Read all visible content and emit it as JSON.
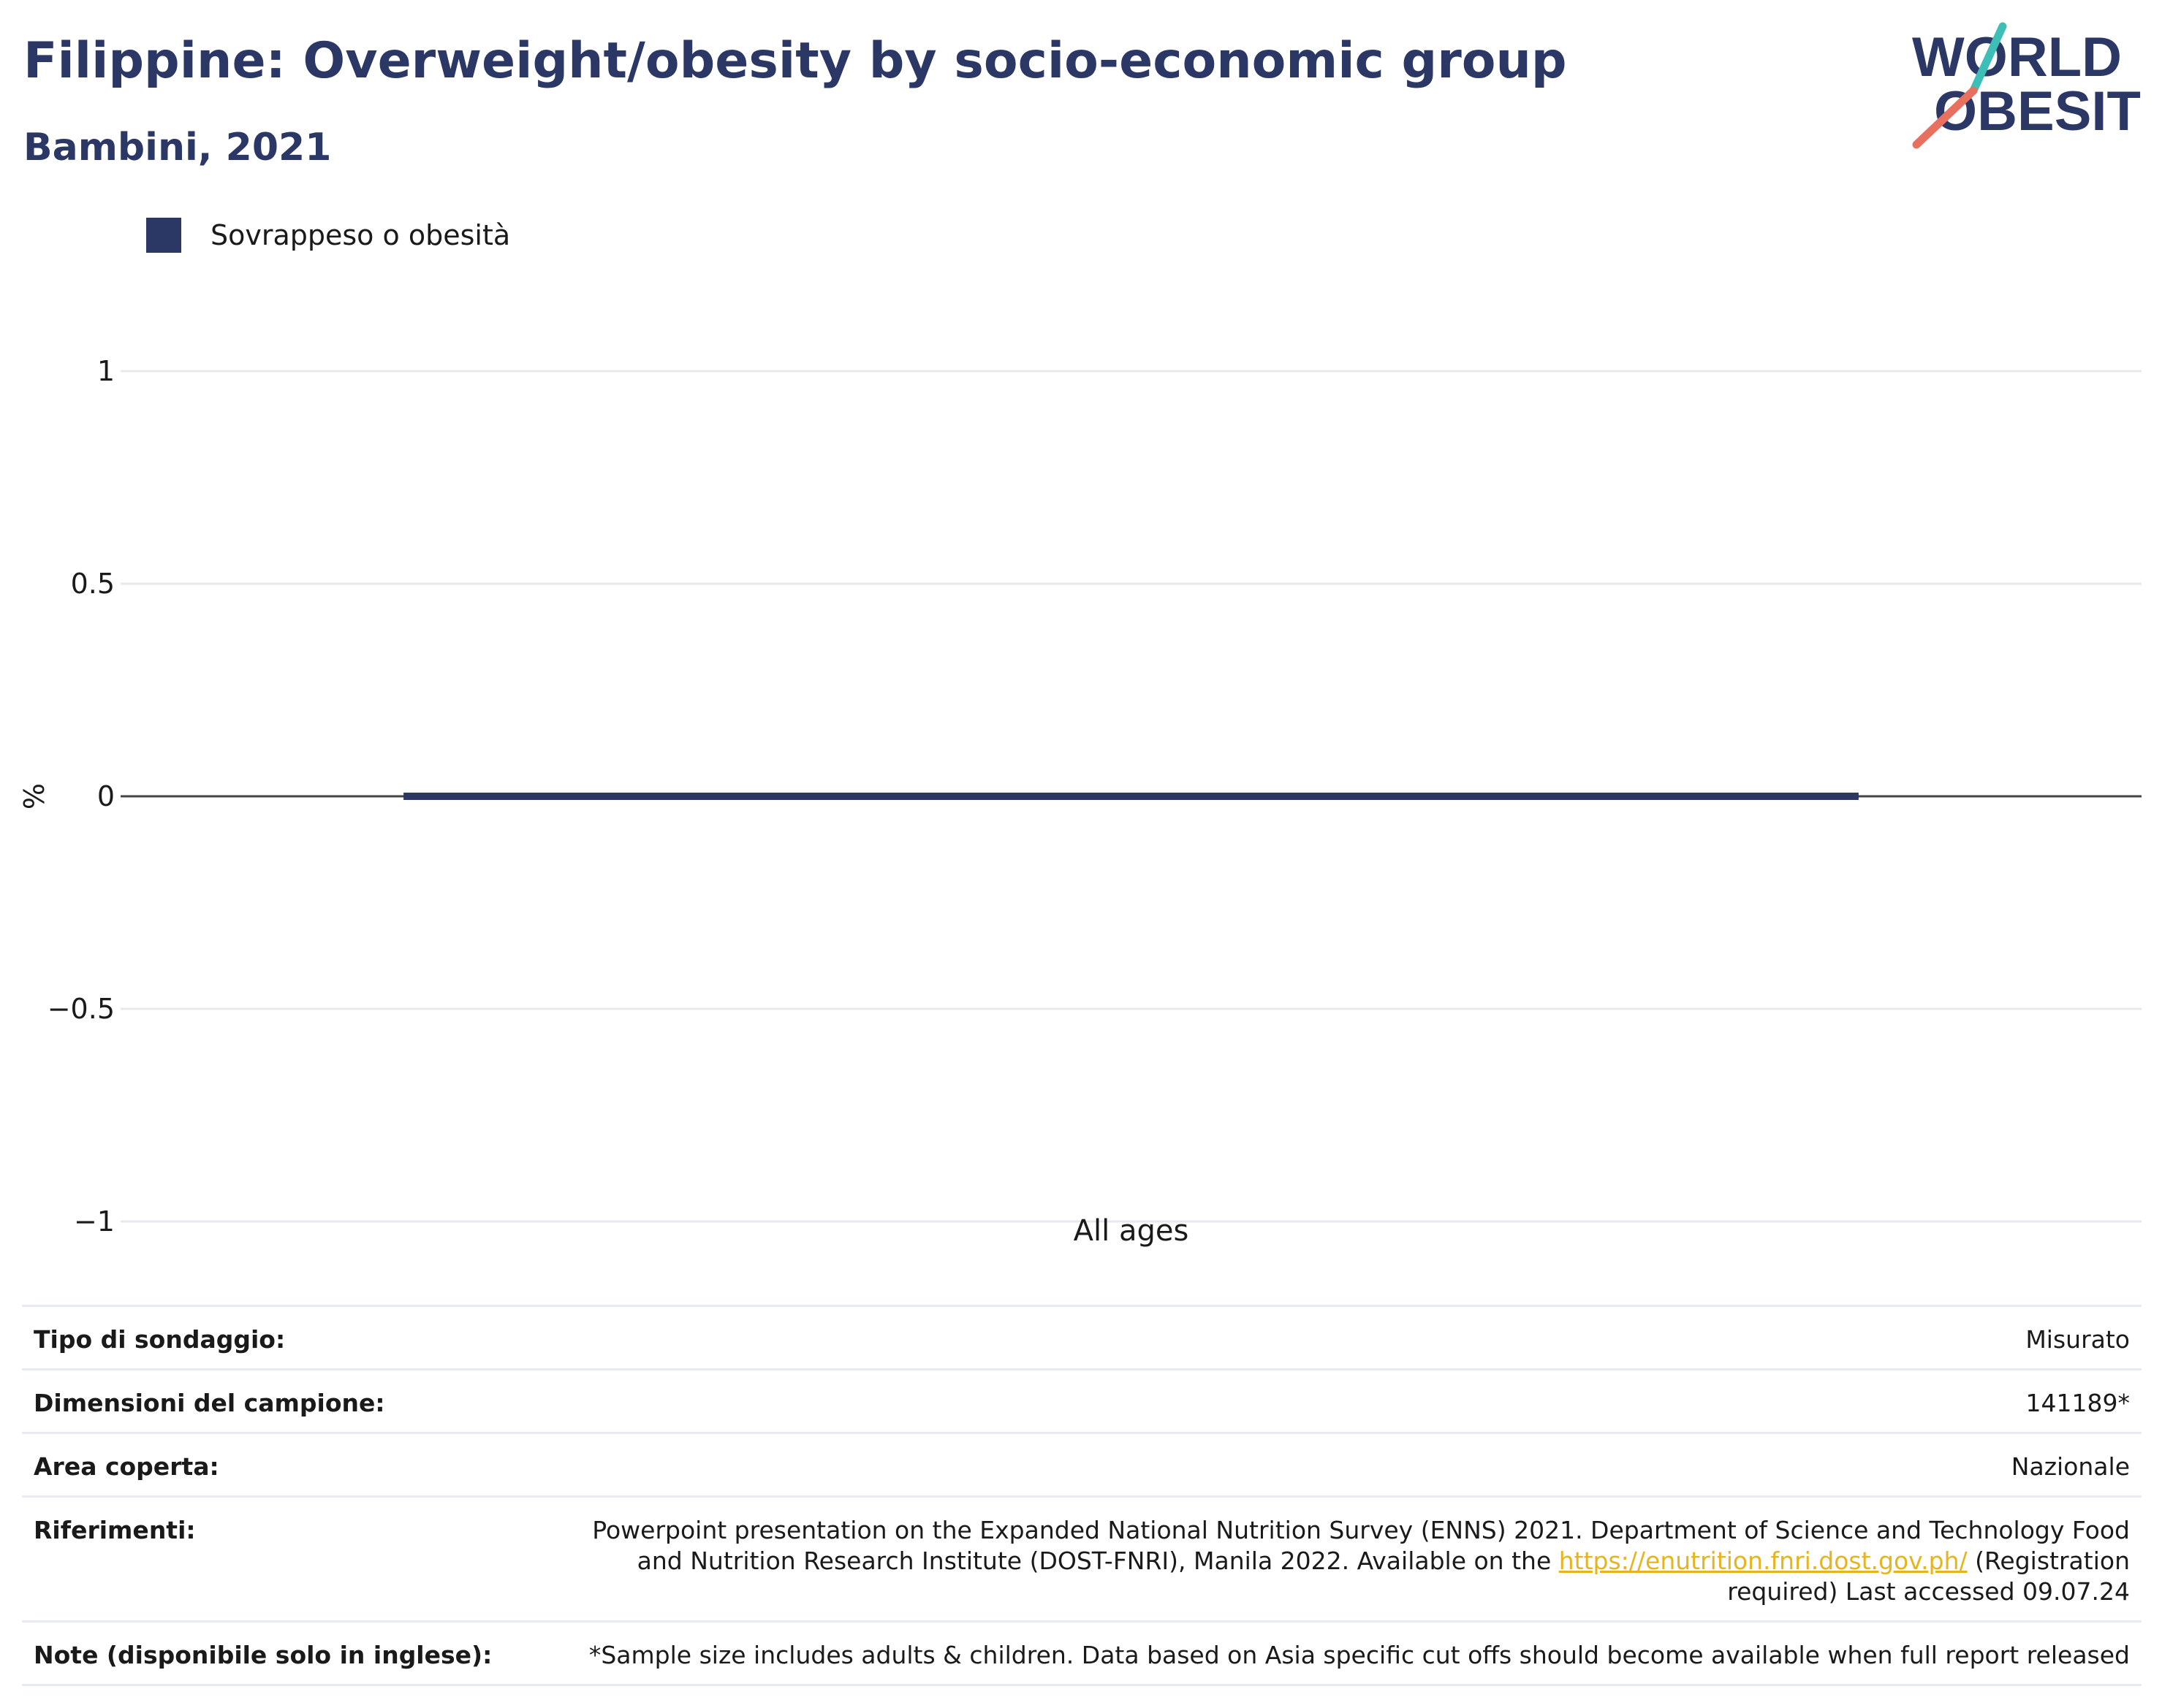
{
  "header": {
    "title": "Filippine: Overweight/obesity by socio-economic group",
    "subtitle": "Bambini, 2021",
    "logo_text_line1": "WORLD",
    "logo_text_line2": "OBESITY"
  },
  "colors": {
    "series": "#2b3764",
    "title": "#2b3764",
    "link": "#e6b41e",
    "logo_teal": "#3dbfb8",
    "logo_coral": "#e8705f"
  },
  "chart_data": {
    "type": "bar",
    "categories": [
      "All ages"
    ],
    "series": [
      {
        "name": "Sovrappeso o obesità",
        "values": [
          0
        ]
      }
    ],
    "title": "Filippine: Overweight/obesity by socio-economic group",
    "subtitle": "Bambini, 2021",
    "xlabel": "",
    "ylabel": "%",
    "ylim": [
      -1,
      1
    ],
    "yticks": [
      1,
      0.5,
      0,
      -0.5,
      -1
    ],
    "ytick_labels": [
      "1",
      "0.5",
      "0",
      "−0.5",
      "−1"
    ],
    "grid": true,
    "legend_position": "top-left"
  },
  "metadata": [
    {
      "key": "Tipo di sondaggio:",
      "value": "Misurato"
    },
    {
      "key": "Dimensioni del campione:",
      "value": "141189*"
    },
    {
      "key": "Area coperta:",
      "value": "Nazionale"
    },
    {
      "key": "Riferimenti:",
      "value_before": "Powerpoint presentation on the Expanded National Nutrition Survey (ENNS) 2021. Department of Science and Technology Food and Nutrition Research Institute (DOST-FNRI), Manila 2022. Available on the ",
      "link": "https://enutrition.fnri.dost.gov.ph/",
      "value_after": " (Registration required) Last accessed 09.07.24"
    },
    {
      "key": "Note (disponibile solo in inglese):",
      "value": "*Sample size includes adults & children. Data based on Asia specific cut offs should become available when full report released"
    }
  ]
}
